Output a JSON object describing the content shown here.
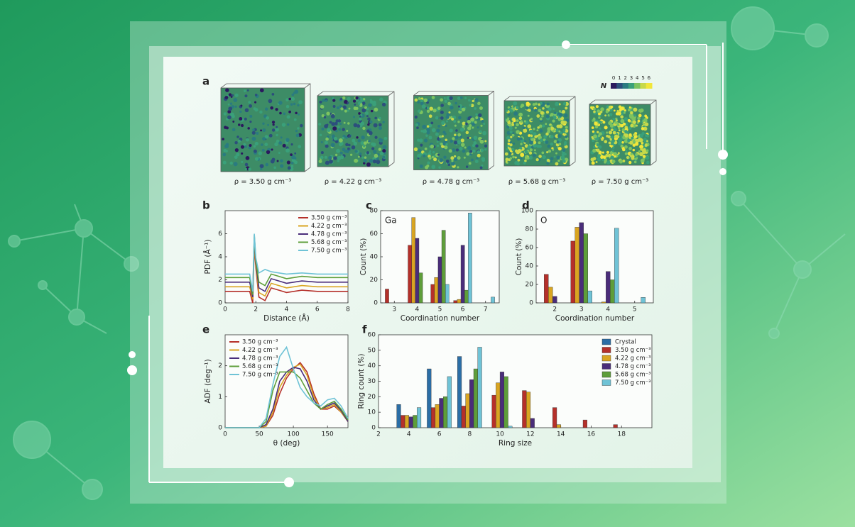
{
  "structures": {
    "panel_label": "a",
    "densities": [
      "ρ = 3.50 g cm⁻³",
      "ρ = 4.22 g cm⁻³",
      "ρ = 4.78 g cm⁻³",
      "ρ = 5.68 g cm⁻³",
      "ρ = 7.50 g cm⁻³"
    ],
    "colorbar": {
      "title": "N",
      "ticks": [
        0,
        1,
        2,
        3,
        4,
        5,
        6
      ]
    }
  },
  "chart_data": [
    {
      "type": "line",
      "panel_label": "b",
      "x_label": "Distance (Å)",
      "y_label": "PDF (Å⁻¹)",
      "legend": "upper right",
      "x": [
        0,
        1,
        1.6,
        1.8,
        1.9,
        2.0,
        2.2,
        2.6,
        3.0,
        3.5,
        4,
        5,
        6,
        7,
        8
      ],
      "xlim": [
        0,
        8
      ],
      "xticks": [
        0,
        2,
        4,
        6,
        8
      ],
      "ylim": [
        0,
        8
      ],
      "yticks": [
        0,
        2,
        4,
        6
      ],
      "series": [
        {
          "name": "3.50 g cm⁻³",
          "color": "#b5302a",
          "values": [
            1,
            1,
            1,
            0,
            5,
            3,
            0.5,
            0.2,
            1.3,
            1.1,
            0.9,
            1.1,
            1,
            1,
            1
          ]
        },
        {
          "name": "4.22 g cm⁻³",
          "color": "#d9a521",
          "values": [
            1.4,
            1.4,
            1.4,
            0.3,
            5.4,
            3.2,
            0.9,
            0.6,
            1.7,
            1.5,
            1.3,
            1.5,
            1.4,
            1.4,
            1.4
          ]
        },
        {
          "name": "4.78 g cm⁻³",
          "color": "#4a2d7a",
          "values": [
            1.8,
            1.8,
            1.8,
            0.5,
            5.7,
            3.5,
            1.3,
            1.0,
            2.1,
            1.9,
            1.7,
            1.9,
            1.8,
            1.8,
            1.8
          ]
        },
        {
          "name": "5.68 g cm⁻³",
          "color": "#5e9e3a",
          "values": [
            2.2,
            2.2,
            2.2,
            0.7,
            5.9,
            3.7,
            1.8,
            1.5,
            2.5,
            2.3,
            2.1,
            2.3,
            2.2,
            2.2,
            2.2
          ]
        },
        {
          "name": "7.50 g cm⁻³",
          "color": "#6fc3d6",
          "values": [
            2.5,
            2.5,
            2.5,
            1.0,
            6.0,
            3.9,
            2.6,
            2.9,
            2.7,
            2.6,
            2.5,
            2.6,
            2.5,
            2.5,
            2.5
          ]
        }
      ]
    },
    {
      "type": "bar",
      "panel_label": "c",
      "inset_label": "Ga",
      "x_label": "Coordination number",
      "y_label": "Count (%)",
      "x": [
        3,
        4,
        5,
        6,
        7
      ],
      "xlim": [
        2.4,
        7.6
      ],
      "xticks": [
        3,
        4,
        5,
        6,
        7
      ],
      "ylim": [
        0,
        80
      ],
      "yticks": [
        0,
        20,
        40,
        60,
        80
      ],
      "series": [
        {
          "name": "3.50 g cm⁻³",
          "color": "#b5302a",
          "values": [
            12,
            50,
            16,
            2,
            0
          ]
        },
        {
          "name": "4.22 g cm⁻³",
          "color": "#d9a521",
          "values": [
            0,
            74,
            22,
            3,
            0
          ]
        },
        {
          "name": "4.78 g cm⁻³",
          "color": "#4a2d7a",
          "values": [
            0,
            56,
            40,
            50,
            0
          ]
        },
        {
          "name": "5.68 g cm⁻³",
          "color": "#5e9e3a",
          "values": [
            0,
            26,
            63,
            11,
            0
          ]
        },
        {
          "name": "7.50 g cm⁻³",
          "color": "#6fc3d6",
          "values": [
            0,
            0,
            16,
            78,
            5
          ]
        }
      ]
    },
    {
      "type": "bar",
      "panel_label": "d",
      "inset_label": "O",
      "x_label": "Coordination number",
      "y_label": "Count (%)",
      "x": [
        2,
        3,
        4,
        5
      ],
      "xlim": [
        1.3,
        5.7
      ],
      "xticks": [
        2,
        3,
        4,
        5
      ],
      "ylim": [
        0,
        100
      ],
      "yticks": [
        0,
        20,
        40,
        60,
        80,
        100
      ],
      "series": [
        {
          "name": "3.50 g cm⁻³",
          "color": "#b5302a",
          "values": [
            31,
            67,
            0,
            0
          ]
        },
        {
          "name": "4.22 g cm⁻³",
          "color": "#d9a521",
          "values": [
            17,
            82,
            1,
            0
          ]
        },
        {
          "name": "4.78 g cm⁻³",
          "color": "#4a2d7a",
          "values": [
            7,
            87,
            34,
            0
          ]
        },
        {
          "name": "5.68 g cm⁻³",
          "color": "#5e9e3a",
          "values": [
            0,
            75,
            25,
            0
          ]
        },
        {
          "name": "7.50 g cm⁻³",
          "color": "#6fc3d6",
          "values": [
            0,
            13,
            81,
            6
          ]
        }
      ]
    },
    {
      "type": "line",
      "panel_label": "e",
      "x_label": "θ (deg)",
      "y_label": "ADF (deg⁻¹)",
      "legend": "upper left",
      "x": [
        0,
        50,
        60,
        70,
        80,
        90,
        100,
        110,
        120,
        130,
        140,
        150,
        160,
        170,
        180
      ],
      "xlim": [
        0,
        180
      ],
      "xticks": [
        0,
        50,
        100,
        150
      ],
      "ylim": [
        0,
        3
      ],
      "yticks": [
        0,
        1,
        2
      ],
      "series": [
        {
          "name": "3.50 g cm⁻³",
          "color": "#b5302a",
          "values": [
            0,
            0,
            0.05,
            0.4,
            1.1,
            1.6,
            1.9,
            2.1,
            1.8,
            1.1,
            0.6,
            0.6,
            0.7,
            0.5,
            0.2
          ]
        },
        {
          "name": "4.22 g cm⁻³",
          "color": "#d9a521",
          "values": [
            0,
            0,
            0.05,
            0.5,
            1.3,
            1.7,
            1.95,
            2.05,
            1.7,
            1.0,
            0.6,
            0.65,
            0.75,
            0.5,
            0.2
          ]
        },
        {
          "name": "4.78 g cm⁻³",
          "color": "#4a2d7a",
          "values": [
            0,
            0,
            0.1,
            0.6,
            1.5,
            1.8,
            1.95,
            1.9,
            1.5,
            0.9,
            0.6,
            0.7,
            0.8,
            0.55,
            0.2
          ]
        },
        {
          "name": "5.68 g cm⁻³",
          "color": "#5e9e3a",
          "values": [
            0,
            0,
            0.2,
            1.2,
            1.8,
            1.8,
            1.8,
            1.6,
            1.2,
            0.8,
            0.6,
            0.75,
            0.85,
            0.6,
            0.25
          ]
        },
        {
          "name": "7.50 g cm⁻³",
          "color": "#6fc3d6",
          "values": [
            0,
            0,
            0.3,
            1.4,
            2.3,
            2.6,
            1.9,
            1.3,
            1.0,
            0.8,
            0.7,
            0.9,
            0.95,
            0.7,
            0.3
          ]
        }
      ]
    },
    {
      "type": "bar",
      "panel_label": "f",
      "x_label": "Ring size",
      "y_label": "Ring count (%)",
      "legend": "upper right",
      "x": [
        4,
        6,
        8,
        10,
        12,
        14,
        16,
        18
      ],
      "xlim": [
        2,
        20
      ],
      "xticks": [
        2,
        4,
        6,
        8,
        10,
        12,
        14,
        16,
        18
      ],
      "ylim": [
        0,
        60
      ],
      "yticks": [
        0,
        10,
        20,
        30,
        40,
        50,
        60
      ],
      "series": [
        {
          "name": "Crystal",
          "color": "#2b6ea6",
          "values": [
            15,
            38,
            46,
            0,
            0,
            0,
            0,
            0
          ]
        },
        {
          "name": "3.50 g cm⁻³",
          "color": "#b5302a",
          "values": [
            8,
            13,
            14,
            21,
            24,
            13,
            5,
            2
          ]
        },
        {
          "name": "4.22 g cm⁻³",
          "color": "#d9a521",
          "values": [
            8,
            15,
            22,
            29,
            23,
            2,
            0,
            0
          ]
        },
        {
          "name": "4.78 g cm⁻³",
          "color": "#4a2d7a",
          "values": [
            7,
            19,
            31,
            36,
            6,
            0,
            0,
            0
          ]
        },
        {
          "name": "5.68 g cm⁻³",
          "color": "#5e9e3a",
          "values": [
            8,
            20,
            38,
            33,
            0,
            0,
            0,
            0
          ]
        },
        {
          "name": "7.50 g cm⁻³",
          "color": "#6fc3d6",
          "values": [
            13,
            33,
            52,
            1,
            0,
            0,
            0,
            0
          ]
        }
      ]
    }
  ]
}
